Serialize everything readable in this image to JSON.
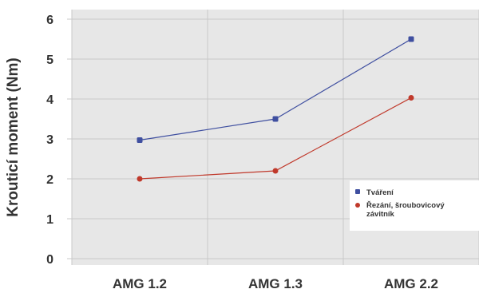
{
  "chart_data": {
    "type": "line",
    "title": "",
    "xlabel": "",
    "ylabel": "Krouticí moment (Nm)",
    "categories": [
      "AMG 1.2",
      "AMG 1.3",
      "AMG 2.2"
    ],
    "ylim": [
      0,
      6
    ],
    "yticks": [
      0,
      1,
      2,
      3,
      4,
      5,
      6
    ],
    "grid": true,
    "legend_position": "right",
    "background_color": "#e7e7e7",
    "series": [
      {
        "name": "Tváření",
        "values": [
          2.97,
          3.5,
          5.5
        ],
        "color": "#3f4fa0"
      },
      {
        "name": "Řezání, šroubovicový závitník",
        "values": [
          2.0,
          2.2,
          4.03
        ],
        "color": "#c0392b"
      }
    ]
  }
}
